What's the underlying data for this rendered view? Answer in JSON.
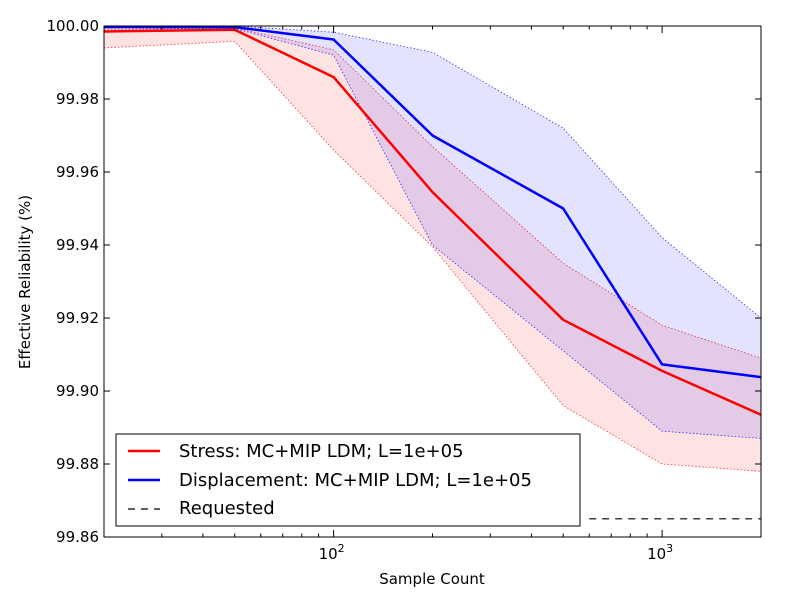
{
  "chart_data": {
    "type": "line",
    "xlabel": "Sample Count",
    "ylabel": "Effective Reliability (%)",
    "xscale": "log",
    "xlim": [
      20,
      2000
    ],
    "ylim": [
      99.86,
      100.0
    ],
    "x_ticks": [
      {
        "value": 100,
        "base": "10",
        "exp": "2"
      },
      {
        "value": 1000,
        "base": "10",
        "exp": "3"
      }
    ],
    "y_ticks": [
      "100.00",
      "99.98",
      "99.96",
      "99.94",
      "99.92",
      "99.90",
      "99.88",
      "99.86"
    ],
    "y_tick_values": [
      100.0,
      99.98,
      99.96,
      99.94,
      99.92,
      99.9,
      99.88,
      99.86
    ],
    "grid": false,
    "legend_position": "lower-left",
    "series": [
      {
        "name": "Stress: MC+MIP LDM; L=1e+05",
        "color": "#ff0000",
        "x": [
          20,
          50,
          100,
          200,
          500,
          1000,
          2000
        ],
        "y": [
          99.9985,
          99.999,
          99.986,
          99.9545,
          99.9195,
          99.9055,
          99.8935
        ],
        "upper": [
          99.999,
          99.9995,
          99.9935,
          99.967,
          99.935,
          99.918,
          99.909
        ],
        "lower": [
          99.994,
          99.9958,
          99.966,
          99.9395,
          99.896,
          99.88,
          99.878
        ]
      },
      {
        "name": "Displacement: MC+MIP LDM; L=1e+05",
        "color": "#0000ff",
        "x": [
          20,
          50,
          100,
          200,
          500,
          1000,
          2000
        ],
        "y": [
          99.9997,
          99.9997,
          99.9963,
          99.97,
          99.95,
          99.9073,
          99.9038
        ],
        "upper": [
          100.0,
          100.0,
          99.9983,
          99.9928,
          99.972,
          99.942,
          99.92
        ],
        "lower": [
          99.9995,
          99.9993,
          99.992,
          99.94,
          99.911,
          99.889,
          99.887
        ]
      }
    ],
    "requested": {
      "name": "Requested",
      "value": 99.865,
      "x_start": 600,
      "style": "dashed",
      "color": "#000000"
    }
  }
}
